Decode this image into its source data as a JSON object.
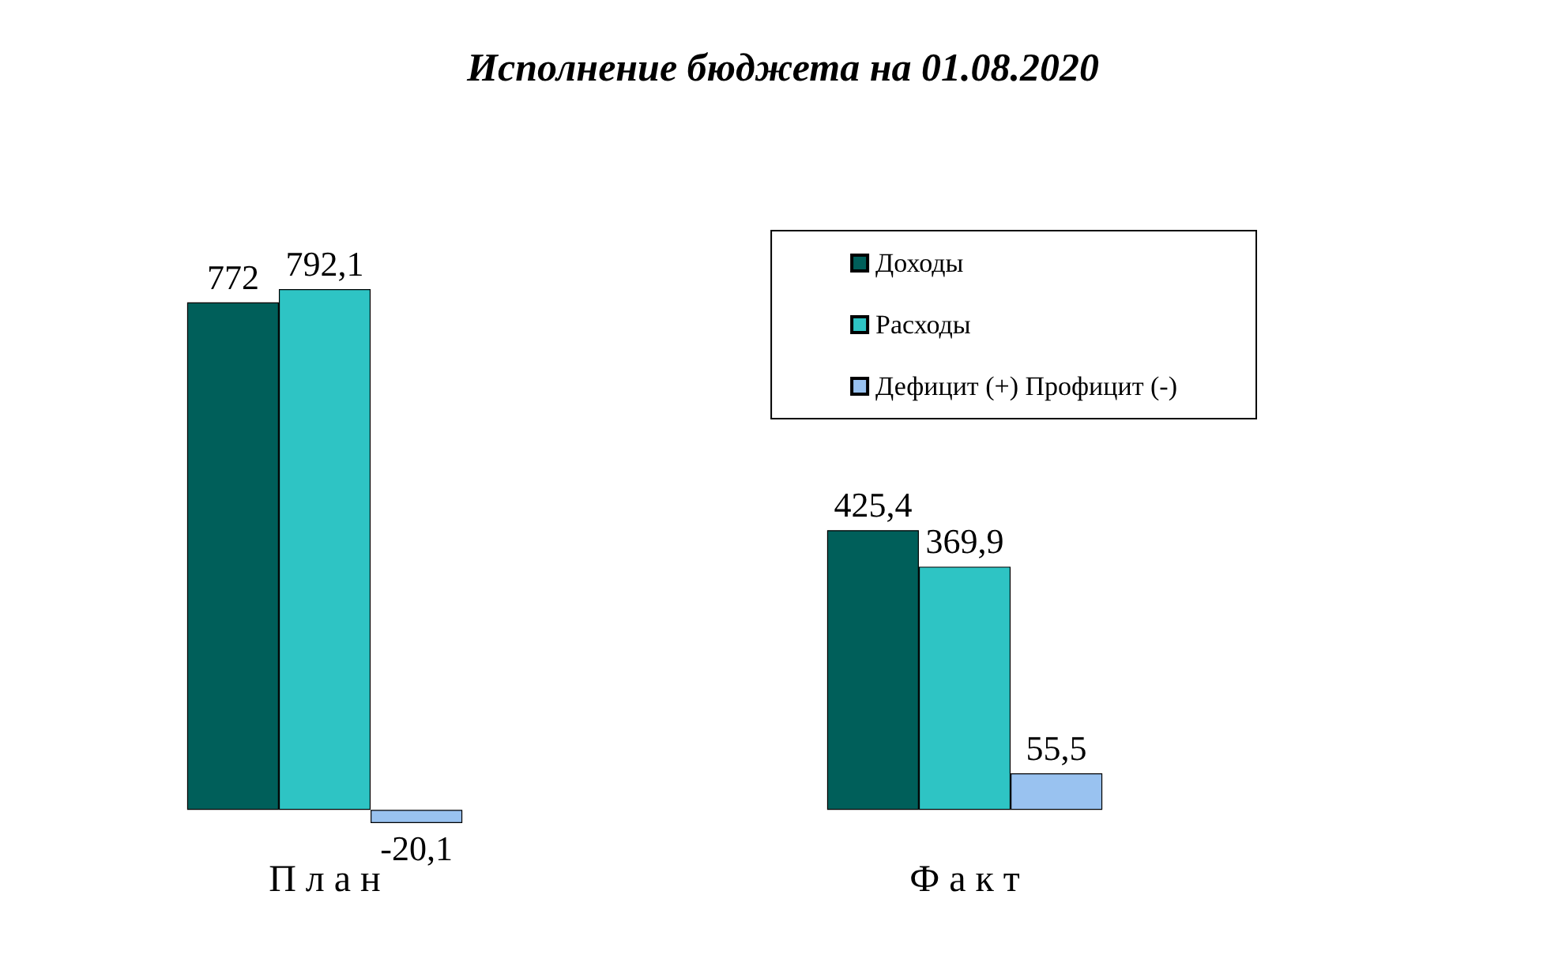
{
  "chart_data": {
    "type": "bar",
    "title": "Исполнение бюджета на 01.08.2020",
    "categories": [
      "П л а н",
      "Ф а к т"
    ],
    "series": [
      {
        "name": "Доходы",
        "color": "#005f5a",
        "values": [
          772,
          425.4
        ],
        "value_labels": [
          "772",
          "425,4"
        ]
      },
      {
        "name": "Расходы",
        "color": "#2ec4c4",
        "values": [
          792.1,
          369.9
        ],
        "value_labels": [
          "792,1",
          "369,9"
        ]
      },
      {
        "name": "Дефицит (+) Профицит (-)",
        "color": "#99c2f0",
        "values": [
          -20.1,
          55.5
        ],
        "value_labels": [
          "-20,1",
          "55,5"
        ]
      }
    ],
    "legend": "top right"
  }
}
